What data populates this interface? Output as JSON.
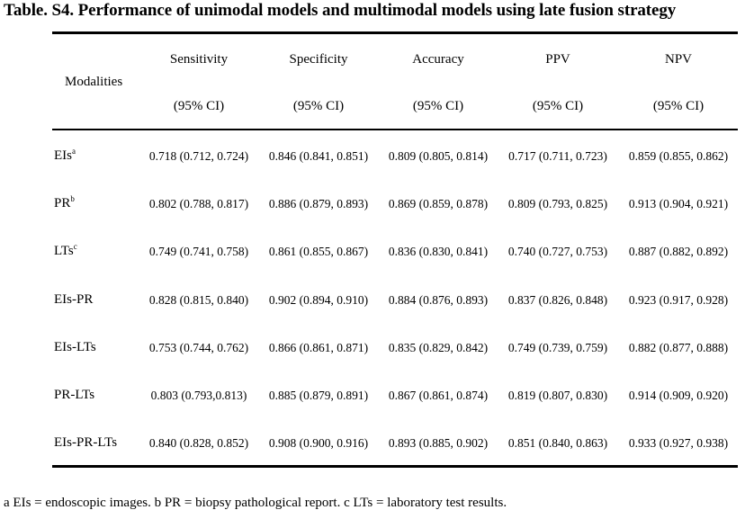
{
  "title": "Table. S4. Performance of unimodal models and multimodal models using late fusion strategy",
  "header": {
    "modalities": "Modalities",
    "columns": [
      {
        "name": "Sensitivity",
        "ci": "(95% CI)"
      },
      {
        "name": "Specificity",
        "ci": "(95% CI)"
      },
      {
        "name": "Accuracy",
        "ci": "(95% CI)"
      },
      {
        "name": "PPV",
        "ci": "(95% CI)"
      },
      {
        "name": "NPV",
        "ci": "(95% CI)"
      }
    ]
  },
  "rows": [
    {
      "label": "EIs",
      "sup": "a",
      "cells": [
        "0.718 (0.712, 0.724)",
        "0.846 (0.841, 0.851)",
        "0.809 (0.805, 0.814)",
        "0.717 (0.711, 0.723)",
        "0.859 (0.855, 0.862)"
      ]
    },
    {
      "label": "PR",
      "sup": "b",
      "cells": [
        "0.802 (0.788, 0.817)",
        "0.886 (0.879, 0.893)",
        "0.869 (0.859, 0.878)",
        "0.809 (0.793, 0.825)",
        "0.913 (0.904, 0.921)"
      ]
    },
    {
      "label": "LTs",
      "sup": "c",
      "cells": [
        "0.749 (0.741, 0.758)",
        "0.861 (0.855, 0.867)",
        "0.836 (0.830, 0.841)",
        "0.740 (0.727, 0.753)",
        "0.887 (0.882, 0.892)"
      ]
    },
    {
      "label": "EIs-PR",
      "sup": "",
      "cells": [
        "0.828 (0.815, 0.840)",
        "0.902 (0.894, 0.910)",
        "0.884 (0.876, 0.893)",
        "0.837 (0.826, 0.848)",
        "0.923 (0.917, 0.928)"
      ]
    },
    {
      "label": "EIs-LTs",
      "sup": "",
      "cells": [
        "0.753 (0.744, 0.762)",
        "0.866 (0.861, 0.871)",
        "0.835 (0.829, 0.842)",
        "0.749 (0.739, 0.759)",
        "0.882 (0.877, 0.888)"
      ]
    },
    {
      "label": "PR-LTs",
      "sup": "",
      "cells": [
        "0.803 (0.793,0.813)",
        "0.885 (0.879, 0.891)",
        "0.867 (0.861, 0.874)",
        "0.819 (0.807, 0.830)",
        "0.914 (0.909, 0.920)"
      ]
    },
    {
      "label": "EIs-PR-LTs",
      "sup": "",
      "cells": [
        "0.840 (0.828, 0.852)",
        "0.908 (0.900, 0.916)",
        "0.893 (0.885, 0.902)",
        "0.851 (0.840, 0.863)",
        "0.933 (0.927, 0.938)"
      ]
    }
  ],
  "footnote": "a EIs = endoscopic images. b PR = biopsy pathological report. c LTs = laboratory test results."
}
